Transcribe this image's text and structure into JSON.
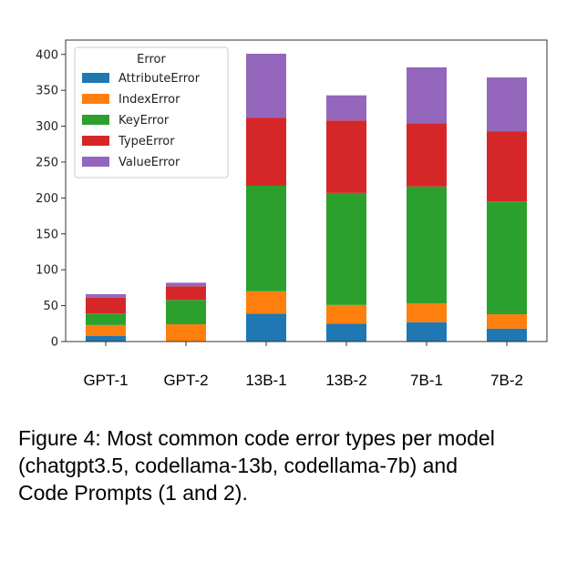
{
  "chart_data": {
    "type": "bar",
    "stacked": true,
    "categories": [
      "GPT-1",
      "GPT-2",
      "13B-1",
      "13B-2",
      "7B-1",
      "7B-2"
    ],
    "series": [
      {
        "name": "AttributeError",
        "color": "#1f77b4",
        "values": [
          8,
          0,
          39,
          25,
          27,
          18
        ]
      },
      {
        "name": "IndexError",
        "color": "#ff7f0e",
        "values": [
          15,
          24,
          31,
          26,
          26,
          20
        ]
      },
      {
        "name": "KeyError",
        "color": "#2ca02c",
        "values": [
          16,
          34,
          147,
          156,
          163,
          157
        ]
      },
      {
        "name": "TypeError",
        "color": "#d62728",
        "values": [
          22,
          19,
          95,
          101,
          88,
          98
        ]
      },
      {
        "name": "ValueError",
        "color": "#9467bd",
        "values": [
          5,
          5,
          89,
          35,
          78,
          75
        ]
      }
    ],
    "legend_title": "Error",
    "legend_position": "top-left",
    "ylim": [
      0,
      420
    ],
    "yticks": [
      0,
      50,
      100,
      150,
      200,
      250,
      300,
      350,
      400
    ],
    "grid": false
  },
  "caption": {
    "line1": "Figure 4: Most common code error types per model",
    "line2": "(chatgpt3.5, codellama-13b, codellama-7b) and",
    "line3": "Code Prompts (1 and 2)."
  }
}
